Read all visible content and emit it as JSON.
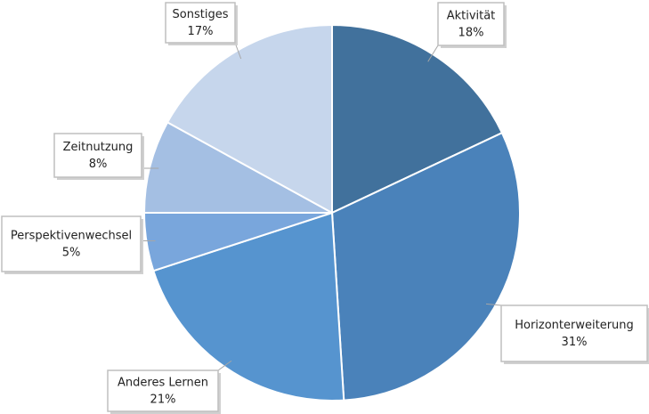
{
  "chart_data": {
    "type": "pie",
    "categories": [
      "Aktivität",
      "Horizonterweiterung",
      "Anderes Lernen",
      "Perspektivenwechsel",
      "Zeitnutzung",
      "Sonstiges"
    ],
    "values": [
      18,
      31,
      21,
      5,
      8,
      17
    ],
    "value_labels": [
      "18%",
      "31%",
      "21%",
      "5%",
      "8%",
      "17%"
    ],
    "colors": [
      "#41719c",
      "#4a82ba",
      "#5694cf",
      "#79a6dc",
      "#a4bfe3",
      "#c6d6ec"
    ]
  }
}
